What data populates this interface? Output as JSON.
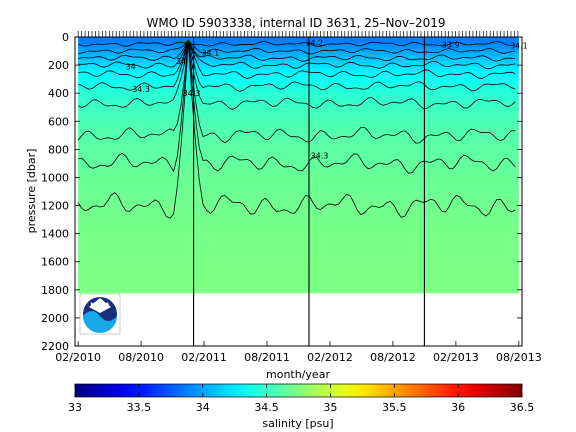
{
  "chart_data": {
    "type": "heatmap",
    "title": "WMO ID 5903338, internal ID 3631, 25–Nov–2019",
    "xlabel": "month/year",
    "ylabel": "pressure [dbar]",
    "x_ticks": [
      "02/2010",
      "08/2010",
      "02/2011",
      "08/2011",
      "02/2012",
      "08/2012",
      "02/2013",
      "08/2013"
    ],
    "x_tick_months": [
      0,
      6,
      12,
      18,
      24,
      30,
      36,
      42
    ],
    "xlim_months": [
      -0.3,
      42.3
    ],
    "y_ticks": [
      0,
      200,
      400,
      600,
      800,
      1000,
      1200,
      1400,
      1600,
      1800,
      2000,
      2200
    ],
    "ylim": [
      0,
      2200
    ],
    "y_reversed": true,
    "data_max_pressure": 1820,
    "year_markers_months": [
      11,
      22,
      33
    ],
    "colorbar": {
      "label": "salinity [psu]",
      "ticks": [
        33,
        33.5,
        34,
        34.5,
        35,
        35.5,
        36,
        36.5
      ],
      "range": [
        33,
        36.5
      ],
      "colormap": "jet"
    },
    "salinity_profile": {
      "pressure": [
        0,
        50,
        100,
        150,
        200,
        250,
        300,
        400,
        500,
        600,
        800,
        1000,
        1200,
        1400,
        1600,
        1800
      ],
      "salinity": [
        33.85,
        33.9,
        34.0,
        34.1,
        34.2,
        34.28,
        34.35,
        34.45,
        34.52,
        34.57,
        34.63,
        34.67,
        34.7,
        34.72,
        34.73,
        34.74
      ]
    },
    "contour_levels": [
      33.9,
      34.0,
      34.1,
      34.2,
      34.3,
      34.4,
      34.5,
      34.6,
      34.65,
      34.7
    ],
    "contour_labels": [
      {
        "text": "34.3",
        "month": 23.0,
        "pressure": 845
      },
      {
        "text": "34.3",
        "month": 10.8,
        "pressure": 400
      },
      {
        "text": "34.1",
        "month": 12.6,
        "pressure": 110
      },
      {
        "text": "34",
        "month": 5.0,
        "pressure": 210
      },
      {
        "text": "34.3",
        "month": 6.0,
        "pressure": 370
      },
      {
        "text": "34",
        "month": 9.8,
        "pressure": 170
      },
      {
        "text": "34.2",
        "month": 22.5,
        "pressure": 40
      },
      {
        "text": "33.9",
        "month": 35.5,
        "pressure": 55
      },
      {
        "text": "34.1",
        "month": 42.0,
        "pressure": 60
      }
    ]
  },
  "logo": {
    "text": "NOAA",
    "colors": {
      "navy": "#16307a",
      "cyan": "#16a8e8"
    }
  }
}
